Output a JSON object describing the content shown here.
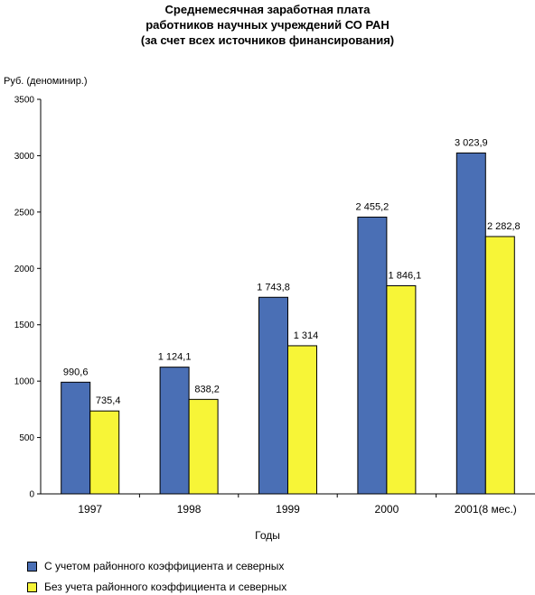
{
  "title_lines": [
    "Среднемесячная заработная плата",
    "работников научных учреждений  СО РАН",
    "(за счет всех источников финансирования)"
  ],
  "colors": {
    "series1": "#4a6fb5",
    "series2": "#f7f537",
    "axis": "#000000"
  },
  "chart_data": {
    "type": "bar",
    "title": "Среднемесячная заработная плата работников научных учреждений  СО РАН (за счет всех источников финансирования)",
    "xlabel": "Годы",
    "ylabel": "Руб. (деноминир.)",
    "ylim": [
      0,
      3500
    ],
    "yticks": [
      0,
      500,
      1000,
      1500,
      2000,
      2500,
      3000,
      3500
    ],
    "grid": false,
    "legend_position": "bottom",
    "categories": [
      "1997",
      "1998",
      "1999",
      "2000",
      "2001(8  мес.)"
    ],
    "series": [
      {
        "name": "С учетом районного коэффициента и северных",
        "values": [
          990.6,
          1124.1,
          1743.8,
          2455.2,
          3023.9
        ],
        "labels": [
          "990,6",
          "1 124,1",
          "1 743,8",
          "2 455,2",
          "3 023,9"
        ]
      },
      {
        "name": "Без учета районного коэффициента и северных",
        "values": [
          735.4,
          838.2,
          1314,
          1846.1,
          2282.8
        ],
        "labels": [
          "735,4",
          "838,2",
          "1 314",
          "1 846,1",
          "2 282,8"
        ]
      }
    ]
  }
}
